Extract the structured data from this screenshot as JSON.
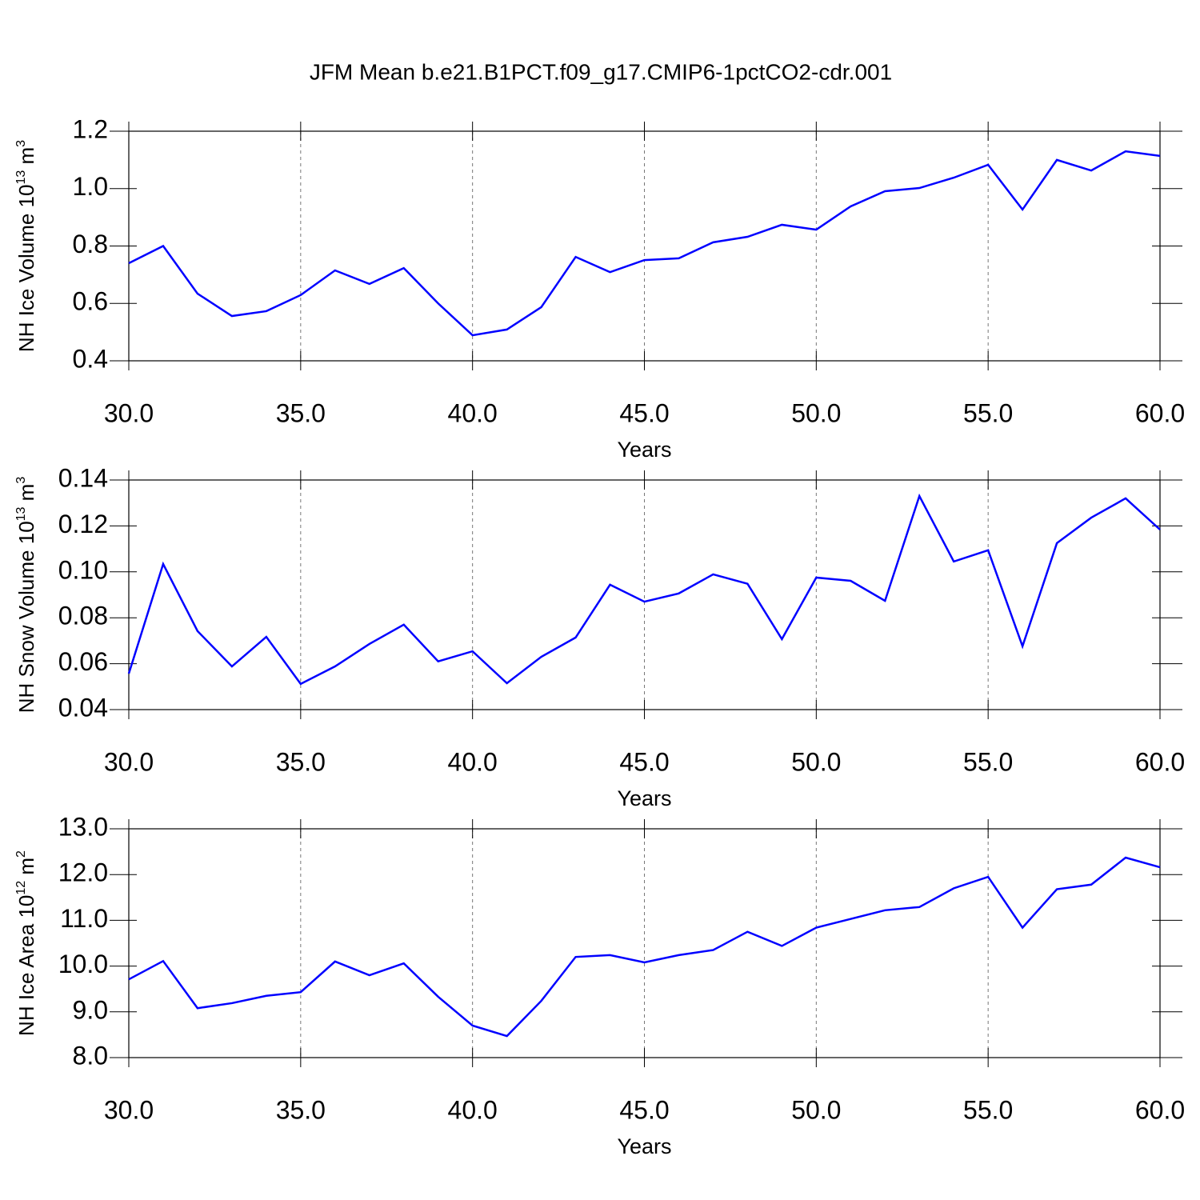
{
  "chart_data": [
    {
      "type": "line",
      "title": "JFM Mean b.e21.B1PCT.f09_g17.CMIP6-1pctCO2-cdr.001",
      "xlabel": "Years",
      "ylabel": [
        "NH Ice Volume 10",
        "13",
        " m",
        "3"
      ],
      "x": [
        30,
        31,
        32,
        33,
        34,
        35,
        36,
        37,
        38,
        39,
        40,
        41,
        42,
        43,
        44,
        45,
        46,
        47,
        48,
        49,
        50,
        51,
        52,
        53,
        54,
        55,
        56,
        57,
        58,
        59,
        60
      ],
      "series": [
        {
          "color": "#0000ff",
          "values": [
            0.74,
            0.8,
            0.634,
            0.556,
            0.573,
            0.629,
            0.715,
            0.668,
            0.723,
            0.6,
            0.489,
            0.509,
            0.587,
            0.762,
            0.709,
            0.751,
            0.757,
            0.813,
            0.832,
            0.874,
            0.857,
            0.938,
            0.991,
            1.002,
            1.038,
            1.083,
            0.927,
            1.1,
            1.063,
            1.13,
            1.114
          ]
        }
      ],
      "xlim": [
        30,
        60
      ],
      "xticks": [
        {
          "value": 30,
          "label": "30.0"
        },
        {
          "value": 35,
          "label": "35.0"
        },
        {
          "value": 40,
          "label": "40.0"
        },
        {
          "value": 45,
          "label": "45.0"
        },
        {
          "value": 50,
          "label": "50.0"
        },
        {
          "value": 55,
          "label": "55.0"
        },
        {
          "value": 60,
          "label": "60.0"
        }
      ],
      "ylim": [
        0.4,
        1.2
      ],
      "yticks": [
        0.4,
        0.6,
        0.8,
        {
          "value": 1.0,
          "label": "1.0"
        },
        1.2
      ],
      "xgrid": true
    },
    {
      "type": "line",
      "xlabel": "Years",
      "ylabel": [
        "NH Snow Volume 10",
        "13",
        " m",
        "3"
      ],
      "x": [
        30,
        31,
        32,
        33,
        34,
        35,
        36,
        37,
        38,
        39,
        40,
        41,
        42,
        43,
        44,
        45,
        46,
        47,
        48,
        49,
        50,
        51,
        52,
        53,
        54,
        55,
        56,
        57,
        58,
        59,
        60
      ],
      "series": [
        {
          "color": "#0000ff",
          "values": [
            0.0557,
            0.1034,
            0.0742,
            0.0588,
            0.0717,
            0.0512,
            0.0588,
            0.0686,
            0.077,
            0.061,
            0.0654,
            0.0515,
            0.063,
            0.0714,
            0.0944,
            0.087,
            0.0906,
            0.0989,
            0.0948,
            0.0707,
            0.0975,
            0.0961,
            0.0874,
            0.133,
            0.1045,
            0.1094,
            0.0676,
            0.1125,
            0.1236,
            0.132,
            0.1184
          ]
        }
      ],
      "xlim": [
        30,
        60
      ],
      "xticks": [
        {
          "value": 30,
          "label": "30.0"
        },
        {
          "value": 35,
          "label": "35.0"
        },
        {
          "value": 40,
          "label": "40.0"
        },
        {
          "value": 45,
          "label": "45.0"
        },
        {
          "value": 50,
          "label": "50.0"
        },
        {
          "value": 55,
          "label": "55.0"
        },
        {
          "value": 60,
          "label": "60.0"
        }
      ],
      "ylim": [
        0.04,
        0.14
      ],
      "yticks": [
        0.04,
        0.06,
        0.08,
        {
          "value": 0.1,
          "label": "0.10"
        },
        0.12,
        0.14
      ],
      "xgrid": true
    },
    {
      "type": "line",
      "xlabel": "Years",
      "ylabel": [
        "NH Ice Area 10",
        "12",
        " m",
        "2"
      ],
      "x": [
        30,
        31,
        32,
        33,
        34,
        35,
        36,
        37,
        38,
        39,
        40,
        41,
        42,
        43,
        44,
        45,
        46,
        47,
        48,
        49,
        50,
        51,
        52,
        53,
        54,
        55,
        56,
        57,
        58,
        59,
        60
      ],
      "series": [
        {
          "color": "#0000ff",
          "values": [
            9.71,
            10.11,
            9.08,
            9.19,
            9.35,
            9.43,
            10.1,
            9.8,
            10.06,
            9.33,
            8.7,
            8.47,
            9.24,
            10.2,
            10.24,
            10.08,
            10.24,
            10.35,
            10.75,
            10.44,
            10.84,
            11.03,
            11.22,
            11.29,
            11.7,
            11.95,
            10.84,
            11.68,
            11.78,
            12.37,
            12.16
          ]
        }
      ],
      "xlim": [
        30,
        60
      ],
      "xticks": [
        {
          "value": 30,
          "label": "30.0"
        },
        {
          "value": 35,
          "label": "35.0"
        },
        {
          "value": 40,
          "label": "40.0"
        },
        {
          "value": 45,
          "label": "45.0"
        },
        {
          "value": 50,
          "label": "50.0"
        },
        {
          "value": 55,
          "label": "55.0"
        },
        {
          "value": 60,
          "label": "60.0"
        }
      ],
      "ylim": [
        8,
        13
      ],
      "yticks": [
        {
          "value": 8,
          "label": "8.0"
        },
        {
          "value": 9,
          "label": "9.0"
        },
        {
          "value": 10,
          "label": "10.0"
        },
        {
          "value": 11,
          "label": "11.0"
        },
        {
          "value": 12,
          "label": "12.0"
        },
        {
          "value": 13,
          "label": "13.0"
        }
      ],
      "xgrid": true
    }
  ]
}
